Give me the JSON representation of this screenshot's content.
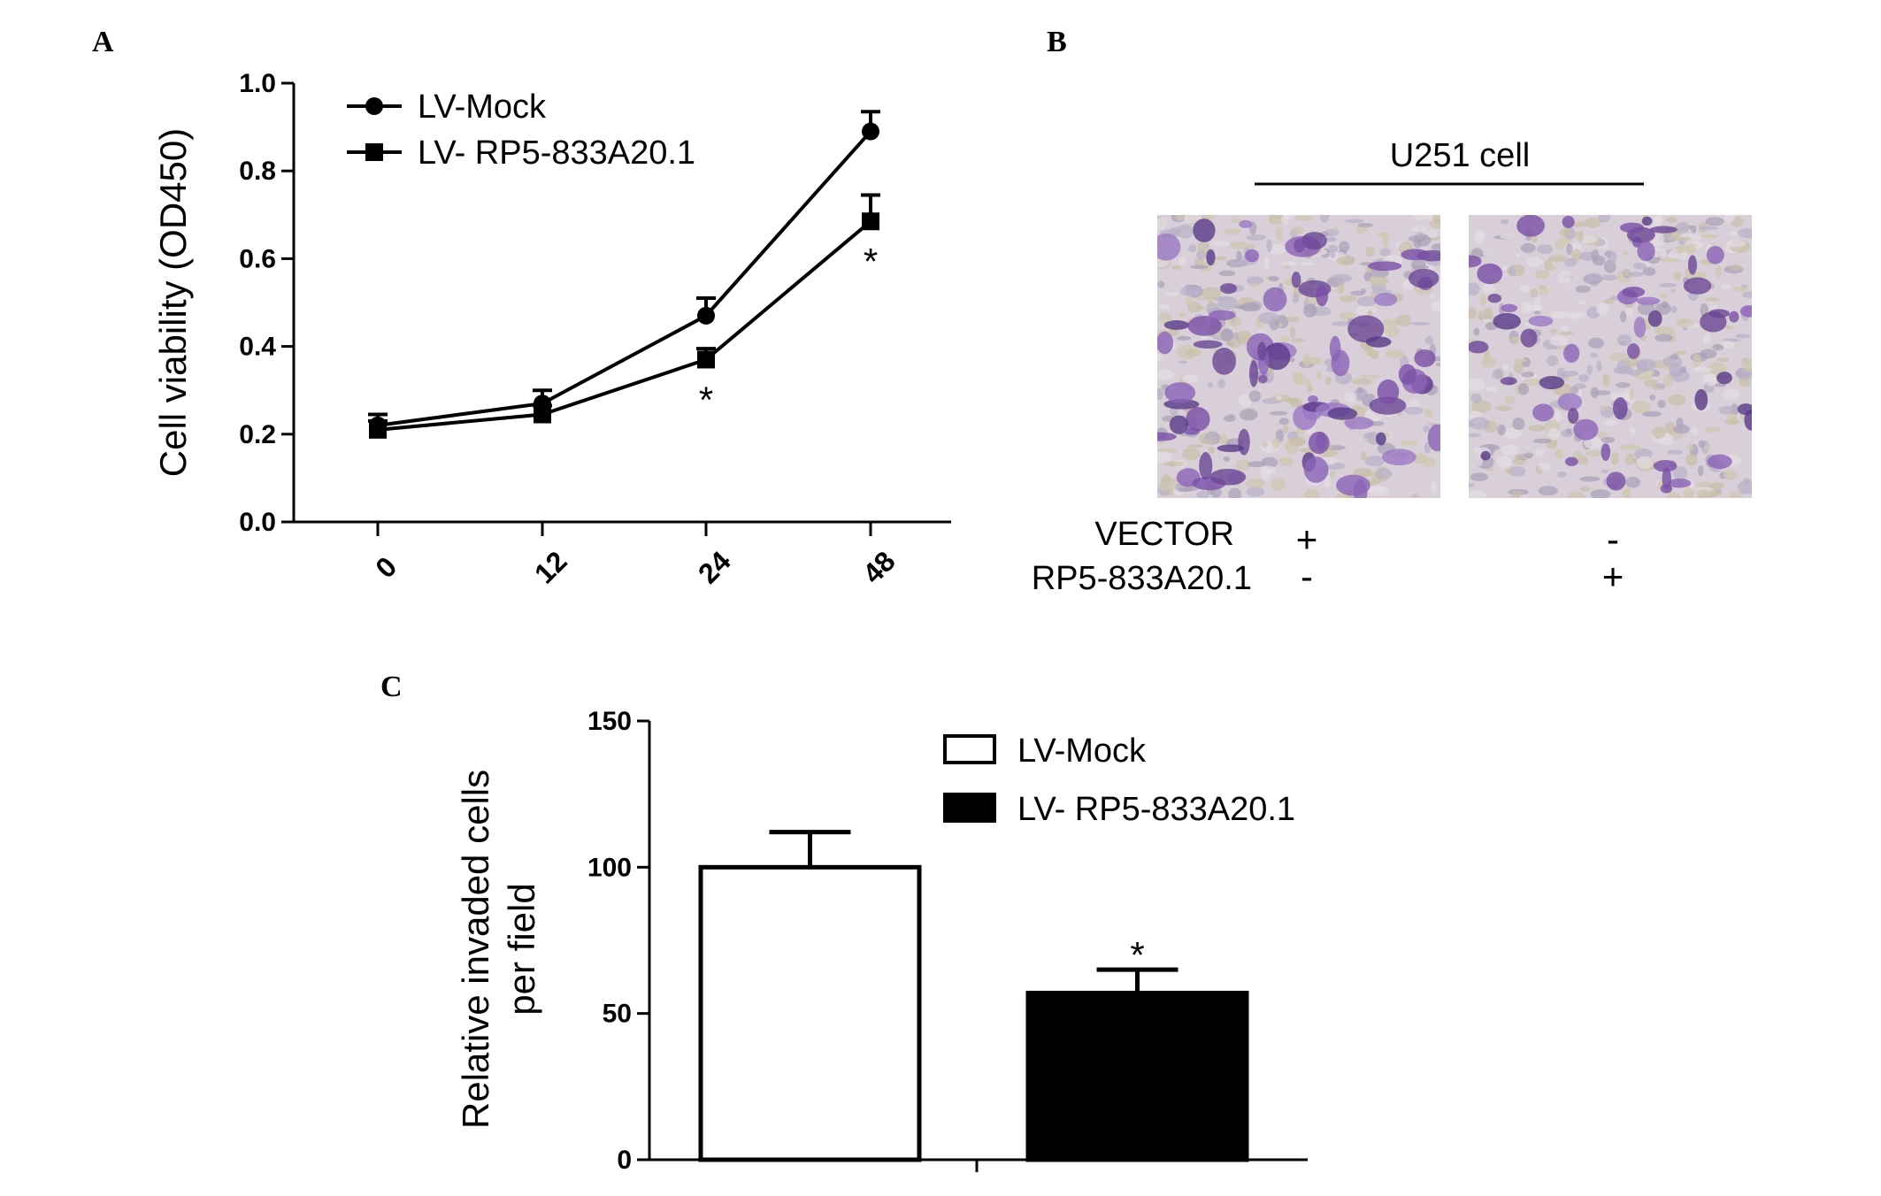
{
  "panels": {
    "a": {
      "letter": "A"
    },
    "b": {
      "letter": "B",
      "header": "U251 cell",
      "row_labels": [
        "VECTOR",
        "RP5-833A20.1"
      ],
      "columns": [
        {
          "name": "vector-field",
          "marks": [
            "+",
            "-"
          ]
        },
        {
          "name": "rp5-field",
          "marks": [
            "-",
            "+"
          ]
        }
      ]
    },
    "c": {
      "letter": "C"
    }
  },
  "chart_data": [
    {
      "type": "line",
      "panel": "A",
      "x": [
        0,
        12,
        24,
        48
      ],
      "x_tick_labels": [
        "0",
        "12",
        "24",
        "48"
      ],
      "ylabel": "Cell viability (OD450)",
      "ylim": [
        0.0,
        1.0
      ],
      "y_ticks": [
        "0.0",
        "0.2",
        "0.4",
        "0.6",
        "0.8",
        "1.0"
      ],
      "legend_position": "top-left",
      "grid": false,
      "series": [
        {
          "name": "LV-Mock",
          "marker": "circle",
          "values": [
            0.22,
            0.27,
            0.47,
            0.89
          ],
          "errors": [
            0.025,
            0.03,
            0.04,
            0.045
          ]
        },
        {
          "name": "LV- RP5-833A20.1",
          "marker": "square",
          "values": [
            0.21,
            0.245,
            0.37,
            0.685
          ],
          "errors": [
            0.02,
            0.02,
            0.025,
            0.06
          ]
        }
      ],
      "significance": [
        {
          "x": 24,
          "label": "*"
        },
        {
          "x": 48,
          "label": "*"
        }
      ]
    },
    {
      "type": "bar",
      "panel": "C",
      "categories": [
        "LV-Mock",
        "LV- RP5-833A20.1"
      ],
      "values": [
        100,
        57
      ],
      "errors": [
        12,
        8
      ],
      "colors": [
        "#ffffff",
        "#000000"
      ],
      "ylabel": "Relative invaded cells\nper field",
      "ylim": [
        0,
        150
      ],
      "y_ticks": [
        "0",
        "50",
        "100",
        "150"
      ],
      "legend_position": "top-right",
      "grid": false,
      "significance": [
        {
          "category": "LV- RP5-833A20.1",
          "label": "*"
        }
      ]
    }
  ]
}
